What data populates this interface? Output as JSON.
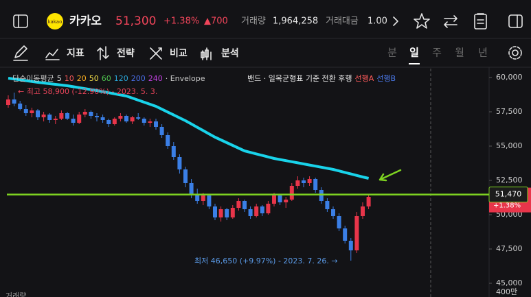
{
  "header": {
    "logo": "kakao",
    "name": "카카오",
    "price": "51,300",
    "change_pct": "+1.38%",
    "change_abs": "▲700",
    "volume_label": "거래량",
    "volume": "1,964,258",
    "amount_label": "거래대금",
    "amount": "1.00"
  },
  "toolbar": {
    "tools": [
      "지표",
      "전략",
      "비교",
      "분석"
    ],
    "periods": [
      "분",
      "일",
      "주",
      "월",
      "년"
    ],
    "selected_period": 1
  },
  "chart_data": {
    "type": "candlestick",
    "legend": [
      {
        "text": "단순이동평균",
        "color": "#c8c8c8"
      },
      {
        "text": "5",
        "color": "#e8e8e8"
      },
      {
        "text": "10",
        "color": "#ff5a5a"
      },
      {
        "text": "20",
        "color": "#ffb020"
      },
      {
        "text": "50",
        "color": "#f5e04a"
      },
      {
        "text": "60",
        "color": "#4fc34f"
      },
      {
        "text": "120",
        "color": "#2aa6d8"
      },
      {
        "text": "200",
        "color": "#4a6fe8"
      },
      {
        "text": "240",
        "color": "#c040e0"
      },
      {
        "text": "· Envelope",
        "color": "#c8c8c8"
      }
    ],
    "legend2": [
      {
        "text": "밴드 · 일목균형표 기준 전환 후행",
        "color": "#e8e8e8"
      },
      {
        "text": "선행A",
        "color": "#ff5a5a"
      },
      {
        "text": "선행B",
        "color": "#4a78e8"
      }
    ],
    "high_note": "← 최고 58,900 (-12.90%) - 2023. 5. 3.",
    "low_note": "최저 46,650 (+9.97%) - 2023. 7. 26. →",
    "ylim": [
      44400,
      60650
    ],
    "yticks": [
      {
        "value": 60000,
        "label": "60,000"
      },
      {
        "value": 57500,
        "label": "57,500"
      },
      {
        "value": 55000,
        "label": "55,000"
      },
      {
        "value": 52500,
        "label": "52,500"
      },
      {
        "value": 50000,
        "label": "50,000"
      },
      {
        "value": 47500,
        "label": "47,500"
      },
      {
        "value": 45000,
        "label": "45,000"
      }
    ],
    "up_color": "#e8354a",
    "down_color": "#3b7fe6",
    "open": [
      58000,
      58400,
      58100,
      57700,
      57400,
      57600,
      57100,
      57300,
      56900,
      57000,
      57400,
      57000,
      56700,
      57300,
      57500,
      57200,
      57100,
      56900,
      56600,
      57000,
      57200,
      56800,
      57100,
      57000,
      56700,
      56800,
      56400,
      55800,
      55000,
      54200,
      53300,
      52300,
      51500,
      51000,
      51400,
      50600,
      49800,
      50400,
      49800,
      50500,
      51000,
      50400,
      49900,
      50600,
      50100,
      50800,
      51400,
      50900,
      51100,
      52100,
      52500,
      52300,
      52600,
      51800,
      51000,
      50400,
      49900,
      49000,
      48100,
      47400,
      49900,
      50600
    ],
    "high": [
      58700,
      58900,
      58300,
      58000,
      57800,
      57700,
      57500,
      57400,
      57200,
      57600,
      57500,
      57300,
      57500,
      57700,
      57600,
      57400,
      57300,
      57000,
      57100,
      57400,
      57300,
      57200,
      57400,
      57100,
      57000,
      57000,
      56600,
      56000,
      55300,
      54400,
      53500,
      52600,
      51900,
      51600,
      51500,
      50800,
      50600,
      50500,
      50700,
      51200,
      51100,
      50600,
      50800,
      50700,
      51000,
      51600,
      51500,
      51300,
      52300,
      52800,
      52700,
      52800,
      52700,
      52000,
      51200,
      50600,
      50100,
      49200,
      48300,
      50200,
      50900,
      51500
    ],
    "low": [
      57800,
      57900,
      57600,
      57200,
      57100,
      56900,
      56800,
      56700,
      56600,
      56900,
      56900,
      56500,
      56600,
      57100,
      57000,
      56800,
      56700,
      56400,
      56500,
      56800,
      56700,
      56600,
      56900,
      56500,
      56400,
      56200,
      55600,
      54800,
      54000,
      53000,
      52000,
      51200,
      50800,
      50700,
      50400,
      49600,
      49500,
      49600,
      49700,
      50300,
      50200,
      49700,
      49800,
      49900,
      50000,
      50600,
      50700,
      50500,
      51000,
      51900,
      52000,
      52100,
      51600,
      50800,
      50200,
      49700,
      48800,
      47900,
      46650,
      47200,
      49700,
      50400
    ],
    "close": [
      58400,
      58100,
      57700,
      57400,
      57600,
      57100,
      57300,
      56900,
      57000,
      57400,
      57000,
      56700,
      57300,
      57500,
      57200,
      57100,
      56900,
      56600,
      57000,
      57200,
      56800,
      57100,
      57000,
      56700,
      56800,
      56400,
      55800,
      55000,
      54200,
      53300,
      52300,
      51500,
      51000,
      51400,
      50600,
      49800,
      50400,
      49800,
      50500,
      51000,
      50400,
      49900,
      50600,
      50100,
      50800,
      51400,
      50900,
      51100,
      52100,
      52500,
      52300,
      52600,
      51800,
      51000,
      50400,
      49900,
      49000,
      48100,
      47400,
      49900,
      50600,
      51300
    ],
    "series": [
      {
        "color": "#19d3ea",
        "values": [
          59950,
          59890,
          59830,
          59770,
          59710,
          59650,
          59600,
          59550,
          59500,
          59450,
          59400,
          59330,
          59260,
          59190,
          59120,
          59050,
          58970,
          58890,
          58810,
          58730,
          58650,
          58500,
          58350,
          58200,
          58050,
          57900,
          57690,
          57480,
          57270,
          57060,
          56850,
          56610,
          56370,
          56130,
          55890,
          55650,
          55450,
          55250,
          55050,
          54850,
          54650,
          54540,
          54430,
          54320,
          54210,
          54100,
          54020,
          53940,
          53860,
          53780,
          53700,
          53620,
          53540,
          53460,
          53380,
          53300,
          53190,
          53080,
          52970,
          52860,
          52750,
          52650
        ]
      }
    ],
    "price_line": {
      "value": 51470,
      "label": "51,470",
      "color": "#7ed321"
    },
    "volume_label": "거래량",
    "volume_tick": "400만"
  }
}
